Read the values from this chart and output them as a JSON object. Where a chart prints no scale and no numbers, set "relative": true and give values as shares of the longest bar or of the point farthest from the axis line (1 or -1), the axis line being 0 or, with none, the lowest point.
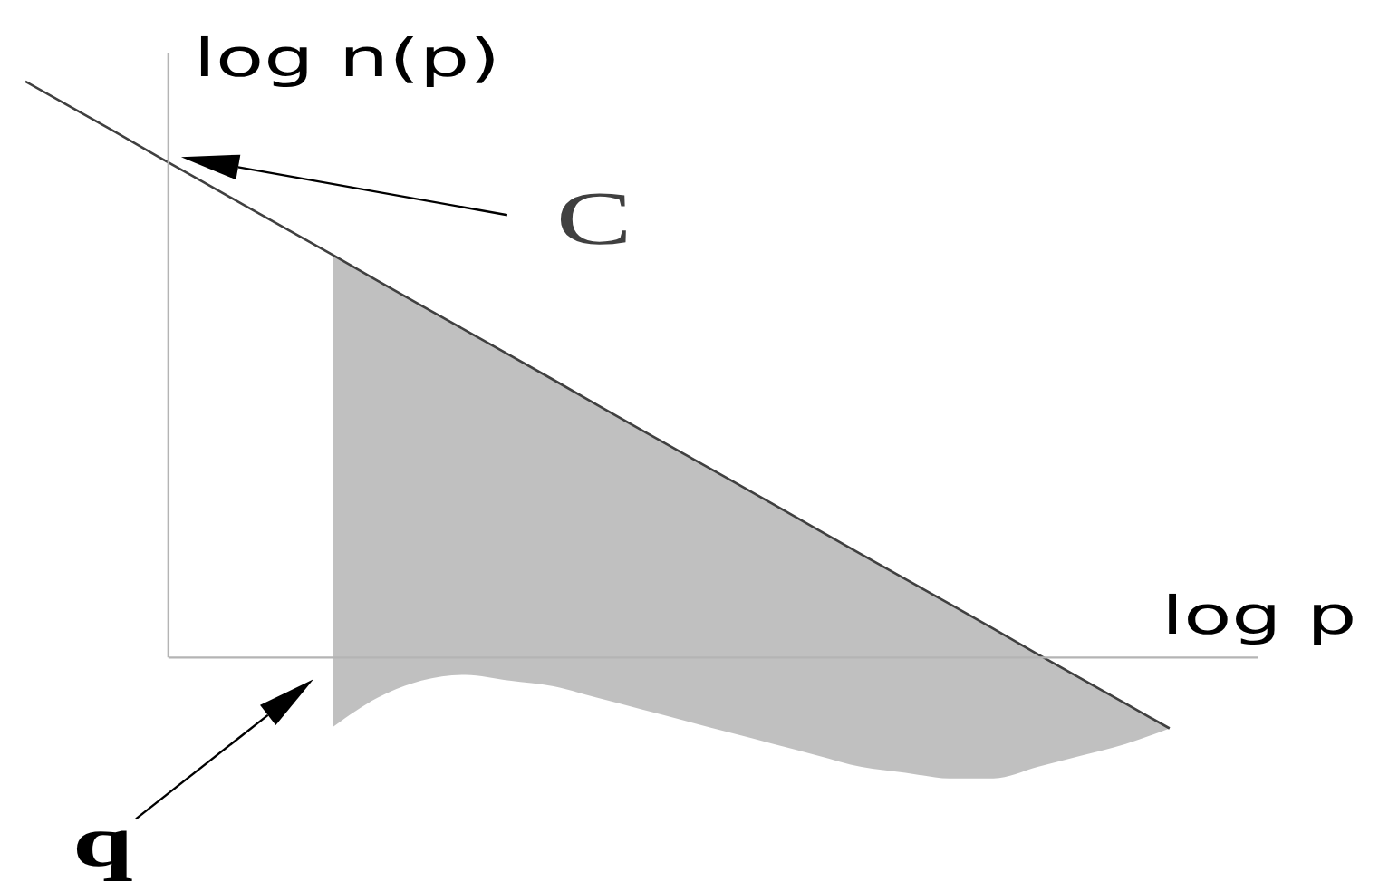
{
  "chart_data": {
    "type": "line",
    "relative": true,
    "xlabel": "log p",
    "ylabel": "log n(p)",
    "annotations": [
      "q"
    ],
    "categories": [
      null,
      null,
      null,
      null,
      null,
      null,
      null,
      null,
      null,
      null,
      null,
      null,
      null,
      null,
      null,
      null,
      null,
      null,
      null,
      null,
      null,
      null,
      null,
      null,
      null,
      null,
      null
    ],
    "series": [
      {
        "name": "C",
        "color": "#404040",
        "values": [
          1.0,
          0.957,
          0.914,
          0.87,
          0.827,
          0.784,
          0.741,
          0.698,
          0.654,
          0.611,
          0.568,
          0.525,
          0.482,
          0.438,
          0.395,
          0.352,
          0.309,
          0.266,
          0.222,
          0.179,
          0.136,
          0.093,
          0.05,
          0.006,
          -0.037,
          -0.08,
          -0.123
        ],
        "lower": [
          null,
          null,
          null,
          null,
          null,
          null,
          null,
          -0.12,
          -0.07,
          -0.04,
          -0.03,
          -0.04,
          -0.05,
          -0.07,
          -0.09,
          -0.11,
          -0.13,
          -0.15,
          -0.17,
          -0.19,
          -0.2,
          -0.21,
          -0.21,
          -0.19,
          -0.17,
          -0.15,
          -0.123
        ],
        "upper": [
          null,
          null,
          null,
          null,
          null,
          null,
          null,
          0.698,
          0.654,
          0.611,
          0.568,
          0.525,
          0.482,
          0.438,
          0.395,
          0.352,
          0.309,
          0.266,
          0.222,
          0.179,
          0.136,
          0.093,
          0.05,
          0.006,
          -0.037,
          -0.08,
          -0.123
        ]
      }
    ],
    "line_style": "solid"
  }
}
